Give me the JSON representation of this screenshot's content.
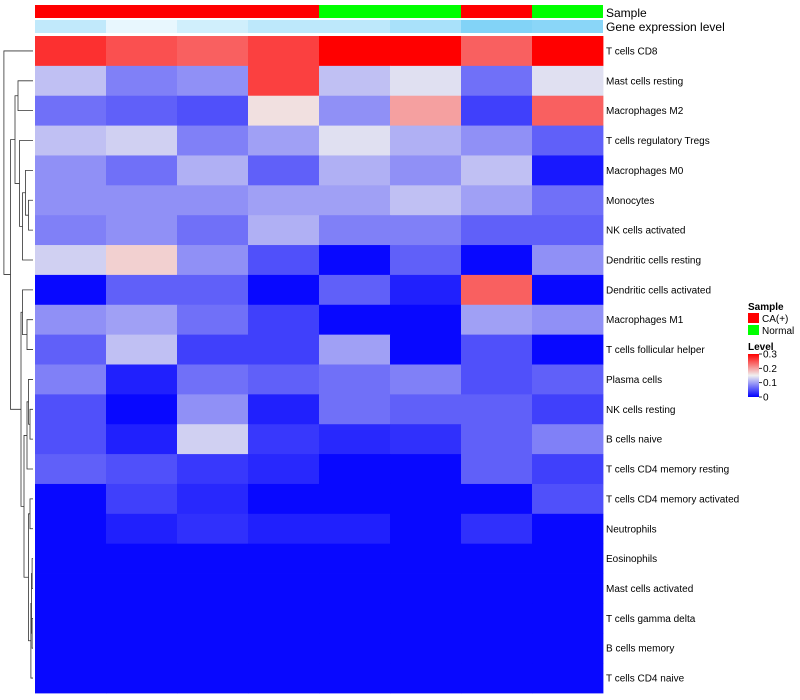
{
  "chart_data": {
    "type": "heatmap",
    "annotation_labels": {
      "sample": "Sample",
      "expression": "Gene expression level"
    },
    "sample_groups": [
      "CA(+)",
      "CA(+)",
      "CA(+)",
      "CA(+)",
      "Normal",
      "Normal",
      "CA(+)",
      "Normal"
    ],
    "expression_levels": [
      0.4,
      0.15,
      0.3,
      0.42,
      0.42,
      0.55,
      0.8,
      0.75
    ],
    "rows": [
      "T cells CD8",
      "Mast cells resting",
      "Macrophages M2",
      "T cells regulatory  Tregs",
      "Macrophages M0",
      "Monocytes",
      "NK cells activated",
      "Dendritic cells resting",
      "Dendritic cells activated",
      "Macrophages M1",
      "T cells follicular helper",
      "Plasma cells",
      "NK cells resting",
      "B cells naive",
      "T cells CD4 memory resting",
      "T cells CD4 memory activated",
      "Neutrophils",
      "Eosinophils",
      "Mast cells activated",
      "T cells gamma delta",
      "B cells memory",
      "T cells CD4 naive"
    ],
    "values": [
      [
        0.27,
        0.25,
        0.24,
        0.26,
        0.3,
        0.3,
        0.24,
        0.3
      ],
      [
        0.12,
        0.08,
        0.09,
        0.26,
        0.12,
        0.14,
        0.07,
        0.14
      ],
      [
        0.07,
        0.06,
        0.05,
        0.16,
        0.09,
        0.2,
        0.04,
        0.24
      ],
      [
        0.12,
        0.13,
        0.08,
        0.1,
        0.14,
        0.11,
        0.09,
        0.06
      ],
      [
        0.09,
        0.07,
        0.11,
        0.06,
        0.11,
        0.09,
        0.12,
        0.015
      ],
      [
        0.09,
        0.09,
        0.09,
        0.1,
        0.1,
        0.12,
        0.1,
        0.07
      ],
      [
        0.08,
        0.09,
        0.07,
        0.11,
        0.08,
        0.08,
        0.06,
        0.06
      ],
      [
        0.13,
        0.17,
        0.09,
        0.05,
        0.005,
        0.06,
        0.005,
        0.09
      ],
      [
        0.005,
        0.06,
        0.06,
        0.005,
        0.06,
        0.02,
        0.24,
        0.005
      ],
      [
        0.09,
        0.1,
        0.07,
        0.04,
        0.005,
        0.005,
        0.1,
        0.09
      ],
      [
        0.06,
        0.12,
        0.04,
        0.04,
        0.1,
        0.005,
        0.05,
        0.005
      ],
      [
        0.08,
        0.02,
        0.07,
        0.06,
        0.07,
        0.08,
        0.05,
        0.06
      ],
      [
        0.05,
        0.005,
        0.09,
        0.02,
        0.07,
        0.06,
        0.06,
        0.04
      ],
      [
        0.05,
        0.02,
        0.13,
        0.035,
        0.025,
        0.03,
        0.06,
        0.08
      ],
      [
        0.06,
        0.05,
        0.035,
        0.025,
        0.005,
        0.005,
        0.06,
        0.04
      ],
      [
        0.005,
        0.04,
        0.025,
        0.005,
        0.005,
        0.005,
        0.005,
        0.05
      ],
      [
        0.005,
        0.02,
        0.03,
        0.02,
        0.02,
        0.005,
        0.03,
        0.005
      ],
      [
        0.005,
        0.005,
        0.005,
        0.005,
        0.005,
        0.005,
        0.005,
        0.005
      ],
      [
        0.005,
        0.005,
        0.005,
        0.005,
        0.005,
        0.005,
        0.005,
        0.005
      ],
      [
        0.005,
        0.005,
        0.005,
        0.005,
        0.005,
        0.005,
        0.005,
        0.005
      ],
      [
        0.005,
        0.005,
        0.005,
        0.005,
        0.005,
        0.005,
        0.005,
        0.005
      ],
      [
        0.005,
        0.005,
        0.005,
        0.005,
        0.005,
        0.005,
        0.005,
        0.005
      ]
    ],
    "color_scale": {
      "min": 0,
      "mid": 0.15,
      "max": 0.3,
      "low": "#0000FF",
      "midcolor": "#F0F0F0",
      "high": "#FF0000"
    },
    "legend": {
      "sample_title": "Sample",
      "sample_entries": [
        {
          "label": "CA(+)",
          "color": "#FF0000"
        },
        {
          "label": "Normal",
          "color": "#00FF00"
        }
      ],
      "level_title": "Level",
      "level_ticks": [
        "0.3",
        "0.2",
        "0.1",
        "0"
      ],
      "level_tick_values": [
        0.3,
        0.2,
        0.1,
        0
      ]
    },
    "dendrogram": "row",
    "legend_position": "right"
  }
}
